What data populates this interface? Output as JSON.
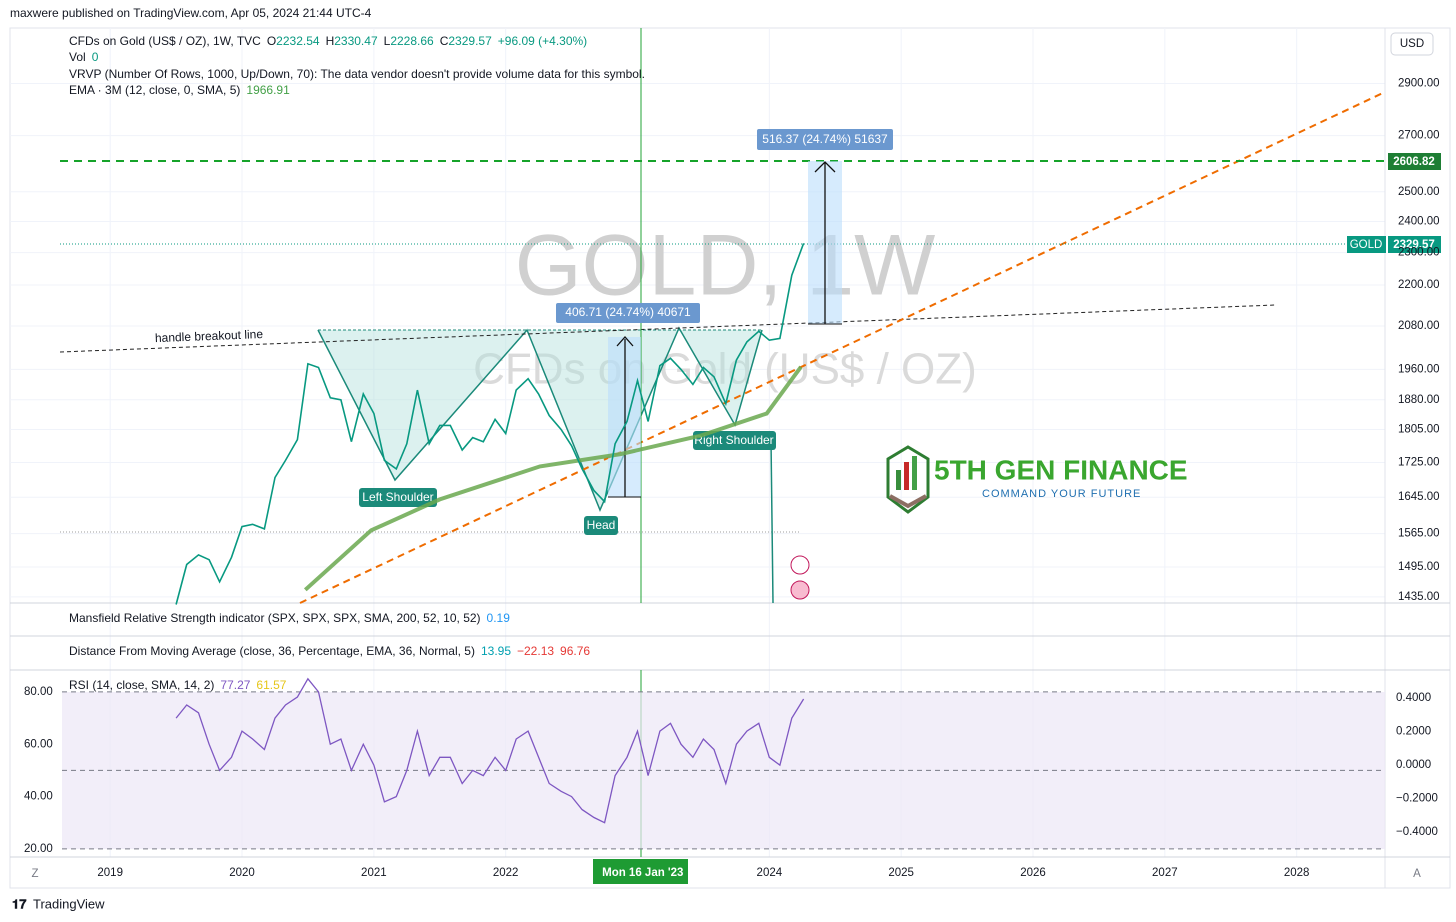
{
  "header": "maxwere published on TradingView.com, Apr 05, 2024 21:44 UTC-4",
  "legend": {
    "symbol": "CFDs on Gold (US$ / OZ), 1W, TVC",
    "ohlc": [
      [
        "O",
        "2232.54"
      ],
      [
        "H",
        "2330.47"
      ],
      [
        "L",
        "2228.66"
      ],
      [
        "C",
        "2329.57"
      ]
    ],
    "change": "+96.09 (+4.30%)",
    "vol": [
      "Vol",
      "0"
    ],
    "vrvp": "VRVP (Number Of Rows, 1000, Up/Down, 70): The data vendor doesn't provide volume data for this symbol.",
    "ema": [
      "EMA · 3M (12, close, 0, SMA, 5)",
      "1966.91"
    ]
  },
  "currency": "USD",
  "watermark": [
    "GOLD, 1W",
    "CFDs on Gold (US$ / OZ)"
  ],
  "price_chart": {
    "log": true,
    "xlim": [
      2018.24,
      2028.67
    ],
    "ylim": [
      1423,
      3129
    ],
    "yticks": [
      {
        "value": 2900,
        "label": "2900.00"
      },
      {
        "value": 2700,
        "label": "2700.00"
      },
      {
        "value": 2500,
        "label": "2500.00"
      },
      {
        "value": 2400,
        "label": "2400.00"
      },
      {
        "value": 2300,
        "label": "2300.00"
      },
      {
        "value": 2200,
        "label": "2200.00"
      },
      {
        "value": 2080,
        "label": "2080.00"
      },
      {
        "value": 1960,
        "label": "1960.00"
      },
      {
        "value": 1880,
        "label": "1880.00"
      },
      {
        "value": 1805,
        "label": "1805.00"
      },
      {
        "value": 1725,
        "label": "1725.00"
      },
      {
        "value": 1645,
        "label": "1645.00"
      },
      {
        "value": 1565,
        "label": "1565.00"
      },
      {
        "value": 1495,
        "label": "1495.00"
      },
      {
        "value": 1435,
        "label": "1435.00"
      }
    ],
    "x": [
      2019.5,
      2019.58,
      2019.67,
      2019.75,
      2019.83,
      2019.92,
      2020.0,
      2020.08,
      2020.17,
      2020.25,
      2020.33,
      2020.42,
      2020.5,
      2020.58,
      2020.67,
      2020.75,
      2020.83,
      2020.92,
      2021.0,
      2021.08,
      2021.17,
      2021.25,
      2021.33,
      2021.42,
      2021.5,
      2021.58,
      2021.67,
      2021.75,
      2021.83,
      2021.92,
      2022.0,
      2022.08,
      2022.17,
      2022.25,
      2022.33,
      2022.42,
      2022.5,
      2022.58,
      2022.67,
      2022.75,
      2022.83,
      2022.92,
      2023.0,
      2023.08,
      2023.17,
      2023.25,
      2023.33,
      2023.42,
      2023.5,
      2023.58,
      2023.67,
      2023.75,
      2023.83,
      2023.92,
      2024.0,
      2024.08,
      2024.17,
      2024.26
    ],
    "close": [
      1420,
      1500,
      1520,
      1510,
      1465,
      1515,
      1580,
      1585,
      1575,
      1690,
      1730,
      1780,
      1975,
      1965,
      1885,
      1880,
      1775,
      1895,
      1845,
      1730,
      1710,
      1770,
      1905,
      1770,
      1815,
      1815,
      1755,
      1785,
      1775,
      1830,
      1795,
      1905,
      1935,
      1895,
      1840,
      1805,
      1765,
      1710,
      1660,
      1635,
      1770,
      1825,
      1930,
      1825,
      1970,
      1990,
      1960,
      1920,
      1965,
      1940,
      1870,
      1985,
      2035,
      2065,
      2040,
      2045,
      2230,
      2329.57
    ],
    "close_color": "#089981",
    "ema_x": [
      2020.48,
      2020.98,
      2021.5,
      2022.26,
      2022.87,
      2023.48,
      2023.98,
      2024.24
    ],
    "ema": [
      1449,
      1572,
      1640,
      1716,
      1745,
      1790,
      1845,
      1966.91
    ],
    "ema_color": "#6aa84f"
  },
  "levels": {
    "target": "2606.82",
    "symbol": "GOLD",
    "last": "2329.57"
  },
  "annotations": {
    "handle": "handle breakout line",
    "measure1": "406.71 (24.74%) 40671",
    "measure2": "516.37 (24.74%) 51637",
    "left": "Left Shoulder",
    "head": "Head",
    "right": "Right Shoulder"
  },
  "logo": {
    "name": "5TH GEN FINANCE",
    "tagline": "COMMAND YOUR FUTURE"
  },
  "indicators": {
    "mansfield": [
      "Mansfield Relative Strength indicator (SPX, SPX, SPX, SMA, 200, 52, 10, 52)",
      "0.19"
    ],
    "distance": [
      "Distance From Moving Average (close, 36, Percentage, EMA, 36, Normal, 5)",
      "13.95",
      "−22.13",
      "96.76"
    ],
    "rsi": [
      "RSI (14, close, SMA, 14, 2)",
      "77.27",
      "61.57"
    ]
  },
  "rsi_chart": {
    "ylim": [
      16.9,
      87.6
    ],
    "yticks": [
      {
        "value": 80,
        "label": "80.00"
      },
      {
        "value": 60,
        "label": "60.00"
      },
      {
        "value": 40,
        "label": "40.00"
      },
      {
        "value": 20,
        "label": "20.00"
      }
    ],
    "y2lim": [
      -0.549,
      0.555
    ],
    "y2ticks": [
      {
        "value": 0.4,
        "label": "0.4000"
      },
      {
        "value": 0.2,
        "label": "0.2000"
      },
      {
        "value": 0,
        "label": "0.0000"
      },
      {
        "value": -0.2,
        "label": "−0.2000"
      },
      {
        "value": -0.4,
        "label": "−0.4000"
      }
    ],
    "bands": [
      80,
      50,
      20
    ],
    "values": [
      70,
      75,
      72,
      60,
      50,
      55,
      65,
      62,
      58,
      70,
      75,
      78,
      85,
      80,
      60,
      62,
      50,
      60,
      52,
      38,
      40,
      50,
      65,
      48,
      55,
      55,
      45,
      50,
      48,
      55,
      50,
      62,
      65,
      55,
      45,
      42,
      40,
      35,
      32,
      30,
      48,
      55,
      65,
      48,
      65,
      68,
      60,
      55,
      62,
      58,
      45,
      60,
      65,
      68,
      55,
      52,
      70,
      77.27
    ],
    "color": "#7e57c2"
  },
  "xaxis": {
    "ticks": [
      2019,
      2020,
      2021,
      2022,
      2024,
      2025,
      2026,
      2027,
      2028
    ],
    "crosshair": {
      "value": 2023.04,
      "label": "Mon 16 Jan '23"
    },
    "left": "Z",
    "right": "A"
  },
  "footer": "TradingView"
}
